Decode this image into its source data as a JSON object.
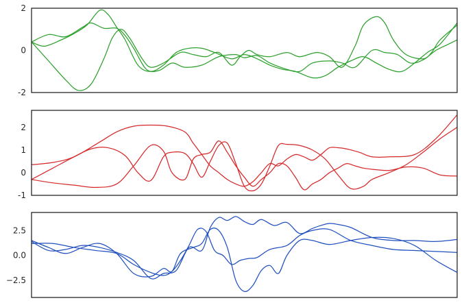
{
  "chart_data": [
    {
      "type": "line",
      "color": "#2ca02c",
      "ylim": [
        -2.0,
        2.0
      ],
      "yticks": [
        {
          "value": 2,
          "label": "2"
        },
        {
          "value": 0,
          "label": "0"
        },
        {
          "value": -2,
          "label": "-2"
        }
      ],
      "x_ticks_shown": false,
      "grid": false,
      "series": [
        {
          "x": [
            0,
            4,
            8,
            12,
            14,
            17,
            20,
            22,
            24,
            27,
            30,
            33,
            36,
            40,
            44,
            48,
            50,
            53,
            56,
            60,
            63,
            66,
            70,
            73,
            76,
            80,
            83,
            86,
            89,
            92,
            95,
            98,
            100
          ],
          "y": [
            0.4,
            0.75,
            0.65,
            1.1,
            1.3,
            1.05,
            1.05,
            0.7,
            0.1,
            -0.9,
            -0.95,
            -0.6,
            -0.8,
            -0.7,
            -0.3,
            -0.2,
            -0.35,
            -0.25,
            -0.6,
            -0.9,
            -1.0,
            -0.6,
            -0.5,
            -0.6,
            -0.8,
            0.0,
            -0.1,
            -0.2,
            -0.6,
            -0.45,
            0.0,
            0.3,
            0.5
          ]
        },
        {
          "x": [
            0,
            3,
            7,
            10,
            13,
            16,
            18,
            20,
            22,
            25,
            28,
            31,
            34,
            37,
            40,
            43,
            47,
            50,
            53,
            56,
            59,
            62,
            66,
            69,
            72,
            75,
            78,
            81,
            84,
            87,
            90,
            93,
            96,
            100
          ],
          "y": [
            0.4,
            0.2,
            0.5,
            0.8,
            1.2,
            1.9,
            1.7,
            1.1,
            0.5,
            -0.7,
            -1.0,
            -0.7,
            -0.1,
            0.1,
            0.1,
            -0.1,
            -0.4,
            -0.2,
            -0.4,
            -0.7,
            -0.9,
            -1.0,
            -1.3,
            -1.2,
            -0.8,
            -0.5,
            -0.3,
            -0.6,
            -0.9,
            -1.0,
            -0.6,
            -0.1,
            0.3,
            1.3
          ]
        },
        {
          "x": [
            0,
            4,
            8,
            11,
            14,
            17,
            19,
            21,
            23,
            26,
            28,
            31,
            35,
            38,
            41,
            44,
            47,
            49,
            51,
            53,
            56,
            60,
            63,
            67,
            70,
            73,
            76,
            78,
            81,
            83,
            85,
            88,
            92,
            94,
            96,
            100
          ],
          "y": [
            0.4,
            -0.5,
            -1.4,
            -1.9,
            -1.6,
            -0.4,
            0.6,
            1.0,
            0.6,
            -0.4,
            -0.8,
            -0.6,
            -0.1,
            -0.2,
            -0.3,
            -0.1,
            -0.7,
            -0.3,
            0.0,
            -0.2,
            -0.3,
            -0.1,
            -0.3,
            -0.1,
            -0.3,
            -0.8,
            0.2,
            1.2,
            1.6,
            1.3,
            0.5,
            -0.2,
            -0.4,
            -0.1,
            0.5,
            1.2
          ]
        }
      ]
    },
    {
      "type": "line",
      "color": "#d62728",
      "ylim": [
        -1.0,
        2.75
      ],
      "yticks": [
        {
          "value": 2,
          "label": "2"
        },
        {
          "value": 1,
          "label": "1"
        },
        {
          "value": 0,
          "label": "0"
        },
        {
          "value": -1,
          "label": "-1"
        }
      ],
      "x_ticks_shown": false,
      "grid": false,
      "series": [
        {
          "x": [
            0,
            5,
            10,
            16,
            20,
            24,
            28,
            32,
            36,
            38,
            40,
            42,
            44,
            46,
            48,
            50,
            52,
            54,
            56,
            58,
            60,
            62,
            64,
            66,
            68,
            70,
            72,
            74,
            77,
            80,
            84,
            90,
            95,
            100
          ],
          "y": [
            0.35,
            0.45,
            0.7,
            1.35,
            1.8,
            2.05,
            2.1,
            2.05,
            1.8,
            1.3,
            0.8,
            0.3,
            0.0,
            -0.3,
            -0.5,
            -0.6,
            -0.4,
            0.0,
            0.4,
            0.3,
            0.6,
            0.8,
            0.7,
            0.55,
            0.8,
            1.1,
            1.1,
            1.05,
            0.9,
            0.7,
            0.7,
            0.8,
            1.5,
            2.55
          ]
        },
        {
          "x": [
            0,
            5,
            10,
            14,
            18,
            22,
            25,
            28,
            31,
            33,
            36,
            38,
            40,
            42,
            44,
            46,
            48,
            50,
            52,
            54,
            56,
            58,
            60,
            63,
            66,
            69,
            72,
            75,
            78,
            80,
            84,
            88,
            92,
            96,
            100
          ],
          "y": [
            -0.3,
            0.2,
            0.7,
            1.05,
            1.1,
            0.75,
            0.0,
            -0.35,
            0.7,
            0.9,
            0.85,
            0.4,
            -0.2,
            0.5,
            1.2,
            1.3,
            0.4,
            -0.6,
            -0.8,
            -0.5,
            0.3,
            1.2,
            1.25,
            1.2,
            1.0,
            0.6,
            -0.1,
            -0.7,
            -0.6,
            -0.3,
            0.0,
            0.35,
            0.9,
            1.5,
            2.0
          ]
        },
        {
          "x": [
            0,
            5,
            10,
            15,
            20,
            24,
            28,
            31,
            33,
            36,
            38,
            40,
            42,
            44,
            46,
            48,
            50,
            52,
            54,
            56,
            58,
            60,
            62,
            64,
            66,
            68,
            70,
            72,
            74,
            76,
            78,
            80,
            84,
            88,
            92,
            96,
            100
          ],
          "y": [
            -0.3,
            -0.45,
            -0.55,
            -0.65,
            -0.5,
            0.3,
            1.2,
            0.95,
            0.0,
            -0.3,
            0.6,
            0.8,
            0.9,
            1.4,
            0.9,
            0.3,
            -0.2,
            -0.6,
            -0.3,
            0.0,
            0.4,
            0.3,
            -0.2,
            -0.75,
            -0.5,
            -0.3,
            0.0,
            0.2,
            0.4,
            0.3,
            0.2,
            0.15,
            0.1,
            0.25,
            0.2,
            -0.1,
            -0.15
          ]
        }
      ]
    },
    {
      "type": "line",
      "color": "#1f4fbf",
      "ylim": [
        -4.2,
        4.3
      ],
      "yticks": [
        {
          "value": 2.5,
          "label": "2.5"
        },
        {
          "value": 0,
          "label": "0.0"
        },
        {
          "value": -2.5,
          "label": "−2.5"
        }
      ],
      "x_ticks_shown": false,
      "grid": false,
      "series": [
        {
          "x": [
            0,
            4,
            8,
            12,
            16,
            20,
            24,
            28,
            31,
            34,
            37,
            40,
            42,
            44,
            46,
            48,
            50,
            52,
            54,
            57,
            60,
            63,
            66,
            68,
            70,
            72,
            75,
            80,
            85,
            90,
            95,
            100
          ],
          "y": [
            1.4,
            0.5,
            0.6,
            1.0,
            0.8,
            0.3,
            -0.5,
            -2.3,
            -1.8,
            -1.5,
            0.8,
            0.5,
            2.8,
            3.8,
            3.5,
            3.9,
            3.4,
            3.1,
            3.6,
            3.0,
            3.3,
            2.2,
            2.7,
            3.0,
            3.2,
            3.1,
            2.8,
            1.8,
            1.5,
            1.5,
            1.4,
            1.6
          ]
        },
        {
          "x": [
            0,
            4,
            8,
            12,
            16,
            20,
            24,
            28,
            31,
            33,
            35,
            38,
            40,
            42,
            44,
            46,
            48,
            50,
            52,
            54,
            56,
            58,
            60,
            63,
            66,
            70,
            75,
            80,
            85,
            90,
            95,
            100
          ],
          "y": [
            1.5,
            0.8,
            0.2,
            0.8,
            1.2,
            0.2,
            -1.8,
            -2.1,
            -1.3,
            -1.6,
            0.2,
            0.8,
            1.2,
            2.6,
            2.5,
            0.8,
            -2.5,
            -3.6,
            -3.0,
            -1.5,
            -1.0,
            -1.8,
            0.0,
            1.5,
            1.5,
            1.1,
            1.5,
            1.8,
            1.7,
            1.0,
            -0.5,
            -1.7
          ]
        },
        {
          "x": [
            0,
            5,
            10,
            15,
            20,
            24,
            28,
            31,
            33,
            35,
            37,
            39,
            41,
            43,
            45,
            47,
            49,
            51,
            53,
            56,
            60,
            63,
            66,
            70,
            75,
            80,
            85,
            90,
            95,
            100
          ],
          "y": [
            1.2,
            1.2,
            0.8,
            0.5,
            0.2,
            -0.9,
            -1.7,
            -2.0,
            -1.6,
            -0.5,
            1.0,
            2.6,
            2.4,
            0.5,
            0.0,
            -0.9,
            -0.5,
            -0.3,
            -0.2,
            0.6,
            1.0,
            2.0,
            2.5,
            2.6,
            1.5,
            1.0,
            0.6,
            0.5,
            0.4,
            0.3
          ]
        }
      ]
    }
  ]
}
